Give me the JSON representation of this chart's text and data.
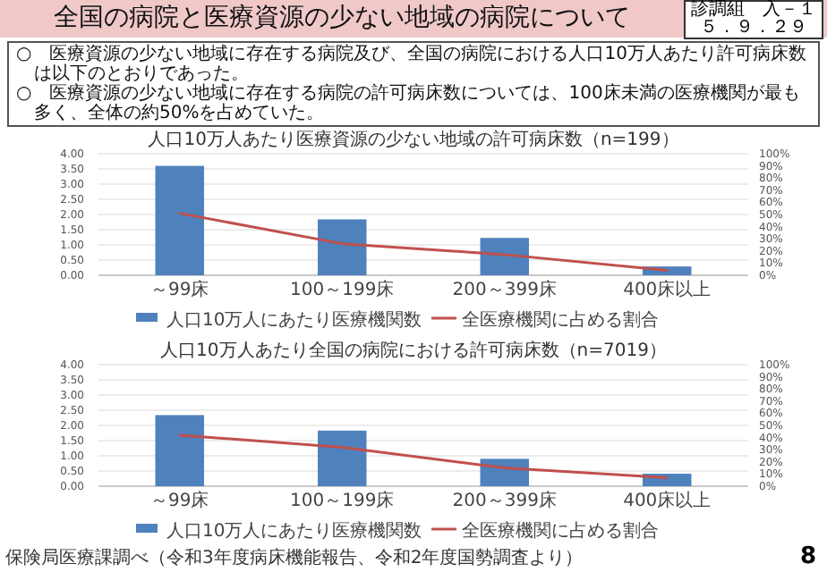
{
  "chart_data": [
    {
      "type": "bar",
      "title": "人口10万人あたり医療資源の少ない地域の許可病床数（n=199）",
      "categories": [
        "～99床",
        "100～199床",
        "200～399床",
        "400床以上"
      ],
      "series": [
        {
          "name": "人口10万人にあたり医療機関数",
          "color": "#4f81bd",
          "values": [
            3.6,
            1.84,
            1.23,
            0.29
          ]
        },
        {
          "name": "全医療機関に占める割合",
          "type": "line",
          "axis": "y2",
          "color": "#c0504d",
          "values": [
            51,
            26,
            17,
            4
          ]
        }
      ],
      "ylim": [
        0,
        4
      ],
      "yticks": [
        {
          "value": 0,
          "label": "0.00"
        },
        {
          "value": 0.5,
          "label": "0.50"
        },
        {
          "value": 1,
          "label": "1.00"
        },
        {
          "value": 1.5,
          "label": "1.50"
        },
        {
          "value": 2,
          "label": "2.00"
        },
        {
          "value": 2.5,
          "label": "2.50"
        },
        {
          "value": 3,
          "label": "3.00"
        },
        {
          "value": 3.5,
          "label": "3.50"
        },
        {
          "value": 4,
          "label": "4.00"
        }
      ],
      "y2lim": [
        0,
        100
      ],
      "y2ticks": [
        {
          "value": 0,
          "label": "0%"
        },
        {
          "value": 10,
          "label": "10%"
        },
        {
          "value": 20,
          "label": "20%"
        },
        {
          "value": 30,
          "label": "30%"
        },
        {
          "value": 40,
          "label": "40%"
        },
        {
          "value": 50,
          "label": "50%"
        },
        {
          "value": 60,
          "label": "60%"
        },
        {
          "value": 70,
          "label": "70%"
        },
        {
          "value": 80,
          "label": "80%"
        },
        {
          "value": 90,
          "label": "90%"
        },
        {
          "value": 100,
          "label": "100%"
        }
      ],
      "grid": "y",
      "legend": "bottom",
      "annotations": [
        "全国の病院と医療資源の少ない地域の病院について",
        "診調組　入－１",
        "５．９．２９",
        "○　医療資源の少ない地域に存在する病院及び、全国の病院における人口10万人あたり許可病床数は以下のとおりであった。",
        "○　医療資源の少ない地域に存在する病院の許可病床数については、100床未満の医療機関が最も多く、全体の約50%を占めていた。"
      ]
    },
    {
      "type": "bar",
      "title": "人口10万人あたり全国の病院における許可病床数（n=7019）",
      "categories": [
        "～99床",
        "100～199床",
        "200～399床",
        "400床以上"
      ],
      "series": [
        {
          "name": "人口10万人にあたり医療機関数",
          "color": "#4f81bd",
          "values": [
            2.34,
            1.83,
            0.9,
            0.41
          ]
        },
        {
          "name": "全医療機関に占める割合",
          "type": "line",
          "axis": "y2",
          "color": "#c0504d",
          "values": [
            42,
            32,
            15,
            7
          ]
        }
      ],
      "ylim": [
        0,
        4
      ],
      "yticks": [
        {
          "value": 0,
          "label": "0.00"
        },
        {
          "value": 0.5,
          "label": "0.50"
        },
        {
          "value": 1,
          "label": "1.00"
        },
        {
          "value": 1.5,
          "label": "1.50"
        },
        {
          "value": 2,
          "label": "2.00"
        },
        {
          "value": 2.5,
          "label": "2.50"
        },
        {
          "value": 3,
          "label": "3.00"
        },
        {
          "value": 3.5,
          "label": "3.50"
        },
        {
          "value": 4,
          "label": "4.00"
        }
      ],
      "y2lim": [
        0,
        100
      ],
      "y2ticks": [
        {
          "value": 0,
          "label": "0%"
        },
        {
          "value": 10,
          "label": "10%"
        },
        {
          "value": 20,
          "label": "20%"
        },
        {
          "value": 30,
          "label": "30%"
        },
        {
          "value": 40,
          "label": "40%"
        },
        {
          "value": 50,
          "label": "50%"
        },
        {
          "value": 60,
          "label": "60%"
        },
        {
          "value": 70,
          "label": "70%"
        },
        {
          "value": 80,
          "label": "80%"
        },
        {
          "value": 90,
          "label": "90%"
        },
        {
          "value": 100,
          "label": "100%"
        }
      ],
      "grid": "y",
      "legend": "bottom",
      "annotations": [
        "保険局医療課調べ（令和3年度病床機能報告、令和2年度国勢調査より）",
        "8"
      ]
    }
  ]
}
